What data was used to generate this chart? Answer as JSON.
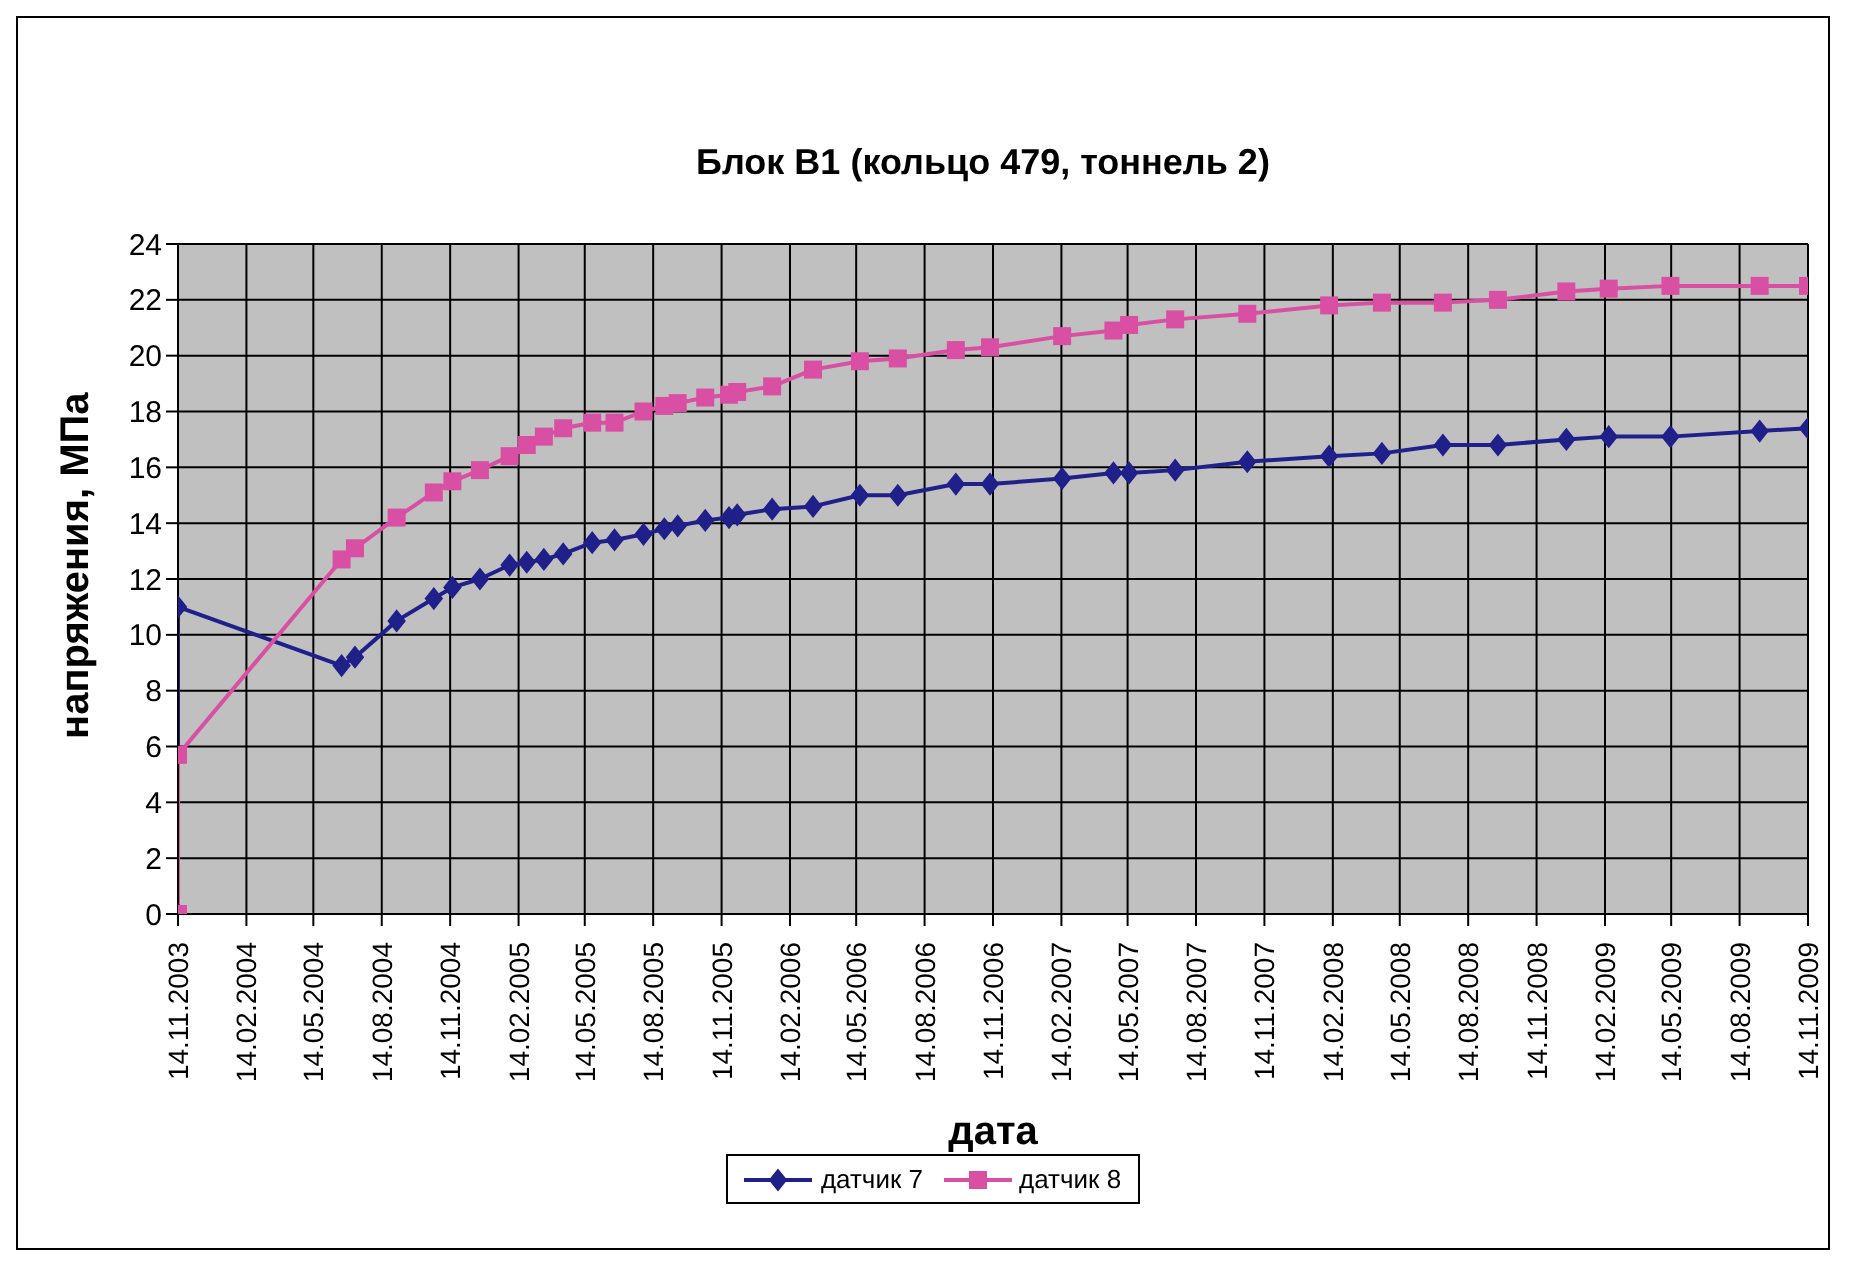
{
  "chart_data": {
    "type": "line",
    "title": "Блок B1 (кольцо 479, тоннель 2)",
    "xlabel": "дата",
    "ylabel": "напряжения, МПа",
    "x": [
      "2003-11-14",
      "2003-11-14",
      "2004-06-21",
      "2004-07-09",
      "2004-09-03",
      "2004-10-23",
      "2004-11-17",
      "2004-12-24",
      "2005-02-02",
      "2005-02-25",
      "2005-03-20",
      "2005-04-15",
      "2005-05-24",
      "2005-06-23",
      "2005-08-01",
      "2005-08-29",
      "2005-09-16",
      "2005-10-23",
      "2005-11-24",
      "2005-12-05",
      "2006-01-21",
      "2006-03-17",
      "2006-05-19",
      "2006-07-09",
      "2006-09-25",
      "2006-11-10",
      "2007-02-15",
      "2007-04-25",
      "2007-05-16",
      "2007-07-17",
      "2007-10-22",
      "2008-02-09",
      "2008-04-20",
      "2008-07-11",
      "2008-09-23",
      "2008-12-24",
      "2009-02-19",
      "2009-05-13",
      "2009-09-10",
      "2009-11-14"
    ],
    "series": [
      {
        "name": "датчик 7",
        "color": "#20208a",
        "marker": "diamond",
        "values": [
          0,
          11.0,
          8.9,
          9.2,
          10.5,
          11.3,
          11.7,
          12.0,
          12.5,
          12.6,
          12.7,
          12.9,
          13.3,
          13.4,
          13.6,
          13.8,
          13.9,
          14.1,
          14.2,
          14.3,
          14.5,
          14.6,
          15.0,
          15.0,
          15.4,
          15.4,
          15.6,
          15.8,
          15.8,
          15.9,
          16.2,
          16.4,
          16.5,
          16.8,
          16.8,
          17.0,
          17.1,
          17.1,
          17.3,
          17.4
        ]
      },
      {
        "name": "датчик 8",
        "color": "#d94fa3",
        "marker": "square",
        "values": [
          0,
          5.7,
          12.7,
          13.1,
          14.2,
          15.1,
          15.5,
          15.9,
          16.4,
          16.8,
          17.1,
          17.4,
          17.6,
          17.6,
          18.0,
          18.2,
          18.3,
          18.5,
          18.6,
          18.7,
          18.9,
          19.5,
          19.8,
          19.9,
          20.2,
          20.3,
          20.7,
          20.9,
          21.1,
          21.3,
          21.5,
          21.8,
          21.9,
          21.9,
          22.0,
          22.3,
          22.4,
          22.5,
          22.5,
          22.5
        ]
      }
    ],
    "xlim": [
      "2003-11-14",
      "2009-11-14"
    ],
    "xticks": [
      {
        "value": "2003-11-14",
        "label": "14.11.2003"
      },
      {
        "value": "2004-02-14",
        "label": "14.02.2004"
      },
      {
        "value": "2004-05-14",
        "label": "14.05.2004"
      },
      {
        "value": "2004-08-14",
        "label": "14.08.2004"
      },
      {
        "value": "2004-11-14",
        "label": "14.11.2004"
      },
      {
        "value": "2005-02-14",
        "label": "14.02.2005"
      },
      {
        "value": "2005-05-14",
        "label": "14.05.2005"
      },
      {
        "value": "2005-08-14",
        "label": "14.08.2005"
      },
      {
        "value": "2005-11-14",
        "label": "14.11.2005"
      },
      {
        "value": "2006-02-14",
        "label": "14.02.2006"
      },
      {
        "value": "2006-05-14",
        "label": "14.05.2006"
      },
      {
        "value": "2006-08-14",
        "label": "14.08.2006"
      },
      {
        "value": "2006-11-14",
        "label": "14.11.2006"
      },
      {
        "value": "2007-02-14",
        "label": "14.02.2007"
      },
      {
        "value": "2007-05-14",
        "label": "14.05.2007"
      },
      {
        "value": "2007-08-14",
        "label": "14.08.2007"
      },
      {
        "value": "2007-11-14",
        "label": "14.11.2007"
      },
      {
        "value": "2008-02-14",
        "label": "14.02.2008"
      },
      {
        "value": "2008-05-14",
        "label": "14.05.2008"
      },
      {
        "value": "2008-08-14",
        "label": "14.08.2008"
      },
      {
        "value": "2008-11-14",
        "label": "14.11.2008"
      },
      {
        "value": "2009-02-14",
        "label": "14.02.2009"
      },
      {
        "value": "2009-05-14",
        "label": "14.05.2009"
      },
      {
        "value": "2009-08-14",
        "label": "14.08.2009"
      },
      {
        "value": "2009-11-14",
        "label": "14.11.2009"
      }
    ],
    "ylim": [
      0,
      24
    ],
    "yticks": [
      0,
      2,
      4,
      6,
      8,
      10,
      12,
      14,
      16,
      18,
      20,
      22,
      24
    ],
    "grid": true,
    "legend": "bottom",
    "line_style": "solid"
  }
}
